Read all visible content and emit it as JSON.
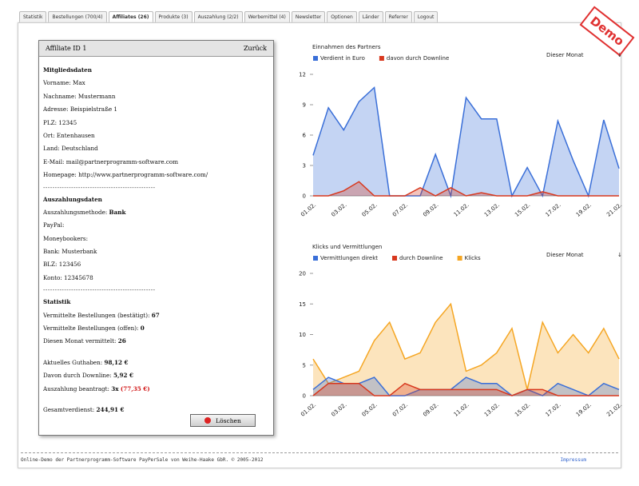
{
  "tabs": [
    "Statistik",
    "Bestellungen (700/4)",
    "Affiliates (26)",
    "Produkte (3)",
    "Auszahlung (2/2)",
    "Werbemittel (4)",
    "Newsletter",
    "Optionen",
    "Länder",
    "Referrer",
    "Logout"
  ],
  "active_tab": 2,
  "stamp": "Demo",
  "panel": {
    "title": "Affiliate ID 1",
    "back": "Zurück",
    "separator": "------------------------------------------------",
    "sections": [
      {
        "heading": "Mitgliedsdaten",
        "groups": [
          [
            {
              "label": "Vorname: Max"
            },
            {
              "label": "Nachname: Mustermann"
            },
            {
              "label": "Adresse: Beispielstraße 1"
            },
            {
              "label": "PLZ: 12345"
            },
            {
              "label": "Ort: Entenhausen"
            },
            {
              "label": "Land: Deutschland"
            },
            {
              "label": "E-Mail: mail@partnerprogramm-software.com"
            },
            {
              "label": "Homepage: http://www.partnerprogramm-software.com/"
            }
          ]
        ]
      },
      {
        "heading": "Auszahlungsdaten",
        "groups": [
          [
            {
              "label": "Auszahlungsmethode: ",
              "value": "Bank"
            },
            {
              "label": "PayPal:"
            },
            {
              "label": "Moneybookers:"
            },
            {
              "label": "Bank: Musterbank"
            },
            {
              "label": "BLZ: 123456"
            },
            {
              "label": "Konto: 12345678"
            }
          ]
        ]
      },
      {
        "heading": "Statistik",
        "groups": [
          [
            {
              "label": "Vermittelte Bestellungen (bestätigt): ",
              "value": "67"
            },
            {
              "label": "Vermittelte Bestellungen (offen): ",
              "value": "0"
            },
            {
              "label": "Diesen Monat vermittelt: ",
              "value": "26"
            }
          ],
          [
            {
              "label": "Aktuelles Guthaben: ",
              "value": "98,12 €"
            },
            {
              "label": "Davon durch Downline: ",
              "value": "5,92 €"
            },
            {
              "label": "Auszahlung beantragt: ",
              "value": "3x",
              "note": "(77,35 €)"
            }
          ],
          [
            {
              "label": "Gesamtverdienst: ",
              "value": "244,91 €"
            }
          ]
        ]
      }
    ],
    "button": "Löschen"
  },
  "footer": {
    "text": "Online-Demo der Partnerprogramm-Software PayPerSale von Weihe-Haake GbR. © 2005-2012",
    "link": "Impressum"
  },
  "chart_data": [
    {
      "type": "area",
      "title": "Einnahmen des Partners",
      "period_link": "Dieser Monat",
      "categories": [
        "01.02.",
        null,
        "03.02.",
        null,
        "05.02.",
        null,
        "07.02.",
        null,
        "09.02.",
        null,
        "11.02.",
        null,
        "13.02.",
        null,
        "15.02.",
        null,
        "17.02.",
        null,
        "19.02.",
        null,
        "21.02."
      ],
      "ylim": [
        0,
        12
      ],
      "yticks": [
        0,
        3,
        6,
        9,
        12
      ],
      "series": [
        {
          "name": "Verdient in Euro",
          "color": "#3a6fd8",
          "values": [
            4,
            8.7,
            6.5,
            9.3,
            10.7,
            0,
            0,
            0,
            4.1,
            0,
            9.7,
            7.6,
            7.6,
            0,
            2.8,
            0,
            7.4,
            3.5,
            0,
            7.5,
            2.7
          ]
        },
        {
          "name": "davon durch Downline",
          "color": "#d8381e",
          "values": [
            0,
            0,
            0.5,
            1.4,
            0,
            0,
            0,
            0.8,
            0,
            0.8,
            0,
            0.3,
            0,
            0,
            0,
            0.4,
            0,
            0,
            0,
            0,
            0
          ]
        }
      ]
    },
    {
      "type": "area",
      "title": "Klicks und Vermittlungen",
      "period_link": "Dieser Monat",
      "categories": [
        "01.02.",
        null,
        "03.02.",
        null,
        "05.02.",
        null,
        "07.02.",
        null,
        "09.02.",
        null,
        "11.02.",
        null,
        "13.02.",
        null,
        "15.02.",
        null,
        "17.02.",
        null,
        "19.02.",
        null,
        "21.02."
      ],
      "ylim": [
        0,
        20
      ],
      "yticks": [
        0,
        5,
        10,
        15,
        20
      ],
      "series": [
        {
          "name": "Vermittlungen direkt",
          "color": "#3a6fd8",
          "values": [
            1,
            3,
            2,
            2,
            3,
            0,
            0,
            1,
            1,
            1,
            3,
            2,
            2,
            0,
            1,
            0,
            2,
            1,
            0,
            2,
            1
          ]
        },
        {
          "name": "durch Downline",
          "color": "#d8381e",
          "values": [
            0,
            2,
            2,
            2,
            0,
            0,
            2,
            1,
            1,
            1,
            1,
            1,
            1,
            0,
            1,
            1,
            0,
            0,
            0,
            0,
            0
          ]
        },
        {
          "name": "Klicks",
          "color": "#f5a623",
          "values": [
            6,
            2,
            3,
            4,
            9,
            12,
            6,
            7,
            12,
            15,
            4,
            5,
            7,
            11,
            1,
            12,
            7,
            10,
            7,
            11,
            6
          ]
        }
      ]
    }
  ]
}
